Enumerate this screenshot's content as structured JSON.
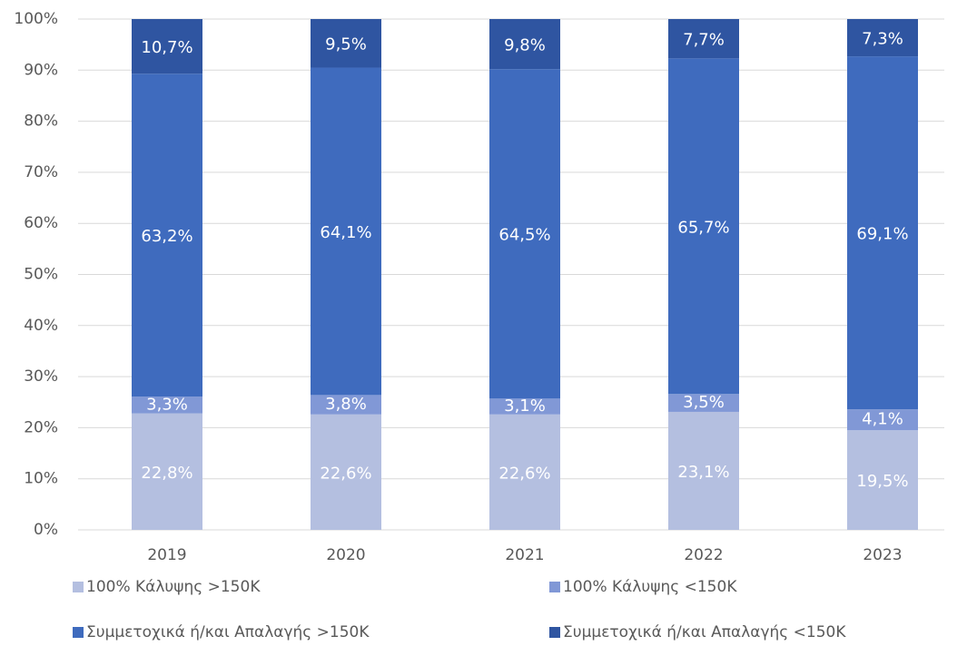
{
  "chart_data": {
    "type": "stacked_bar",
    "categories": [
      "2019",
      "2020",
      "2021",
      "2022",
      "2023"
    ],
    "series": [
      {
        "name": "100% Κάλυψης >150K",
        "color": "#b4bfe0",
        "values": [
          22.8,
          22.6,
          22.6,
          23.1,
          19.5
        ],
        "value_labels": [
          "22,8%",
          "22,6%",
          "22,6%",
          "23,1%",
          "19,5%"
        ]
      },
      {
        "name": "100% Κάλυψης <150K",
        "color": "#8198d6",
        "values": [
          3.3,
          3.8,
          3.1,
          3.5,
          4.1
        ],
        "value_labels": [
          "3,3%",
          "3,8%",
          "3,1%",
          "3,5%",
          "4,1%"
        ]
      },
      {
        "name": "Συμμετοχικά ή/και Απαλαγής >150K",
        "color": "#3f6bbe",
        "values": [
          63.2,
          64.1,
          64.5,
          65.7,
          69.1
        ],
        "value_labels": [
          "63,2%",
          "64,1%",
          "64,5%",
          "65,7%",
          "69,1%"
        ]
      },
      {
        "name": "Συμμετοχικά ή/και Απαλαγής <150K",
        "color": "#2f55a1",
        "values": [
          10.7,
          9.5,
          9.8,
          7.7,
          7.3
        ],
        "value_labels": [
          "10,7%",
          "9,5%",
          "9,8%",
          "7,7%",
          "7,3%"
        ]
      }
    ],
    "ylim": [
      0,
      100
    ],
    "yticks": [
      {
        "value": 0,
        "label": "0%"
      },
      {
        "value": 10,
        "label": "10%"
      },
      {
        "value": 20,
        "label": "20%"
      },
      {
        "value": 30,
        "label": "30%"
      },
      {
        "value": 40,
        "label": "40%"
      },
      {
        "value": 50,
        "label": "50%"
      },
      {
        "value": 60,
        "label": "60%"
      },
      {
        "value": 70,
        "label": "70%"
      },
      {
        "value": 80,
        "label": "80%"
      },
      {
        "value": 90,
        "label": "90%"
      },
      {
        "value": 100,
        "label": "100%"
      }
    ],
    "grid": true
  }
}
